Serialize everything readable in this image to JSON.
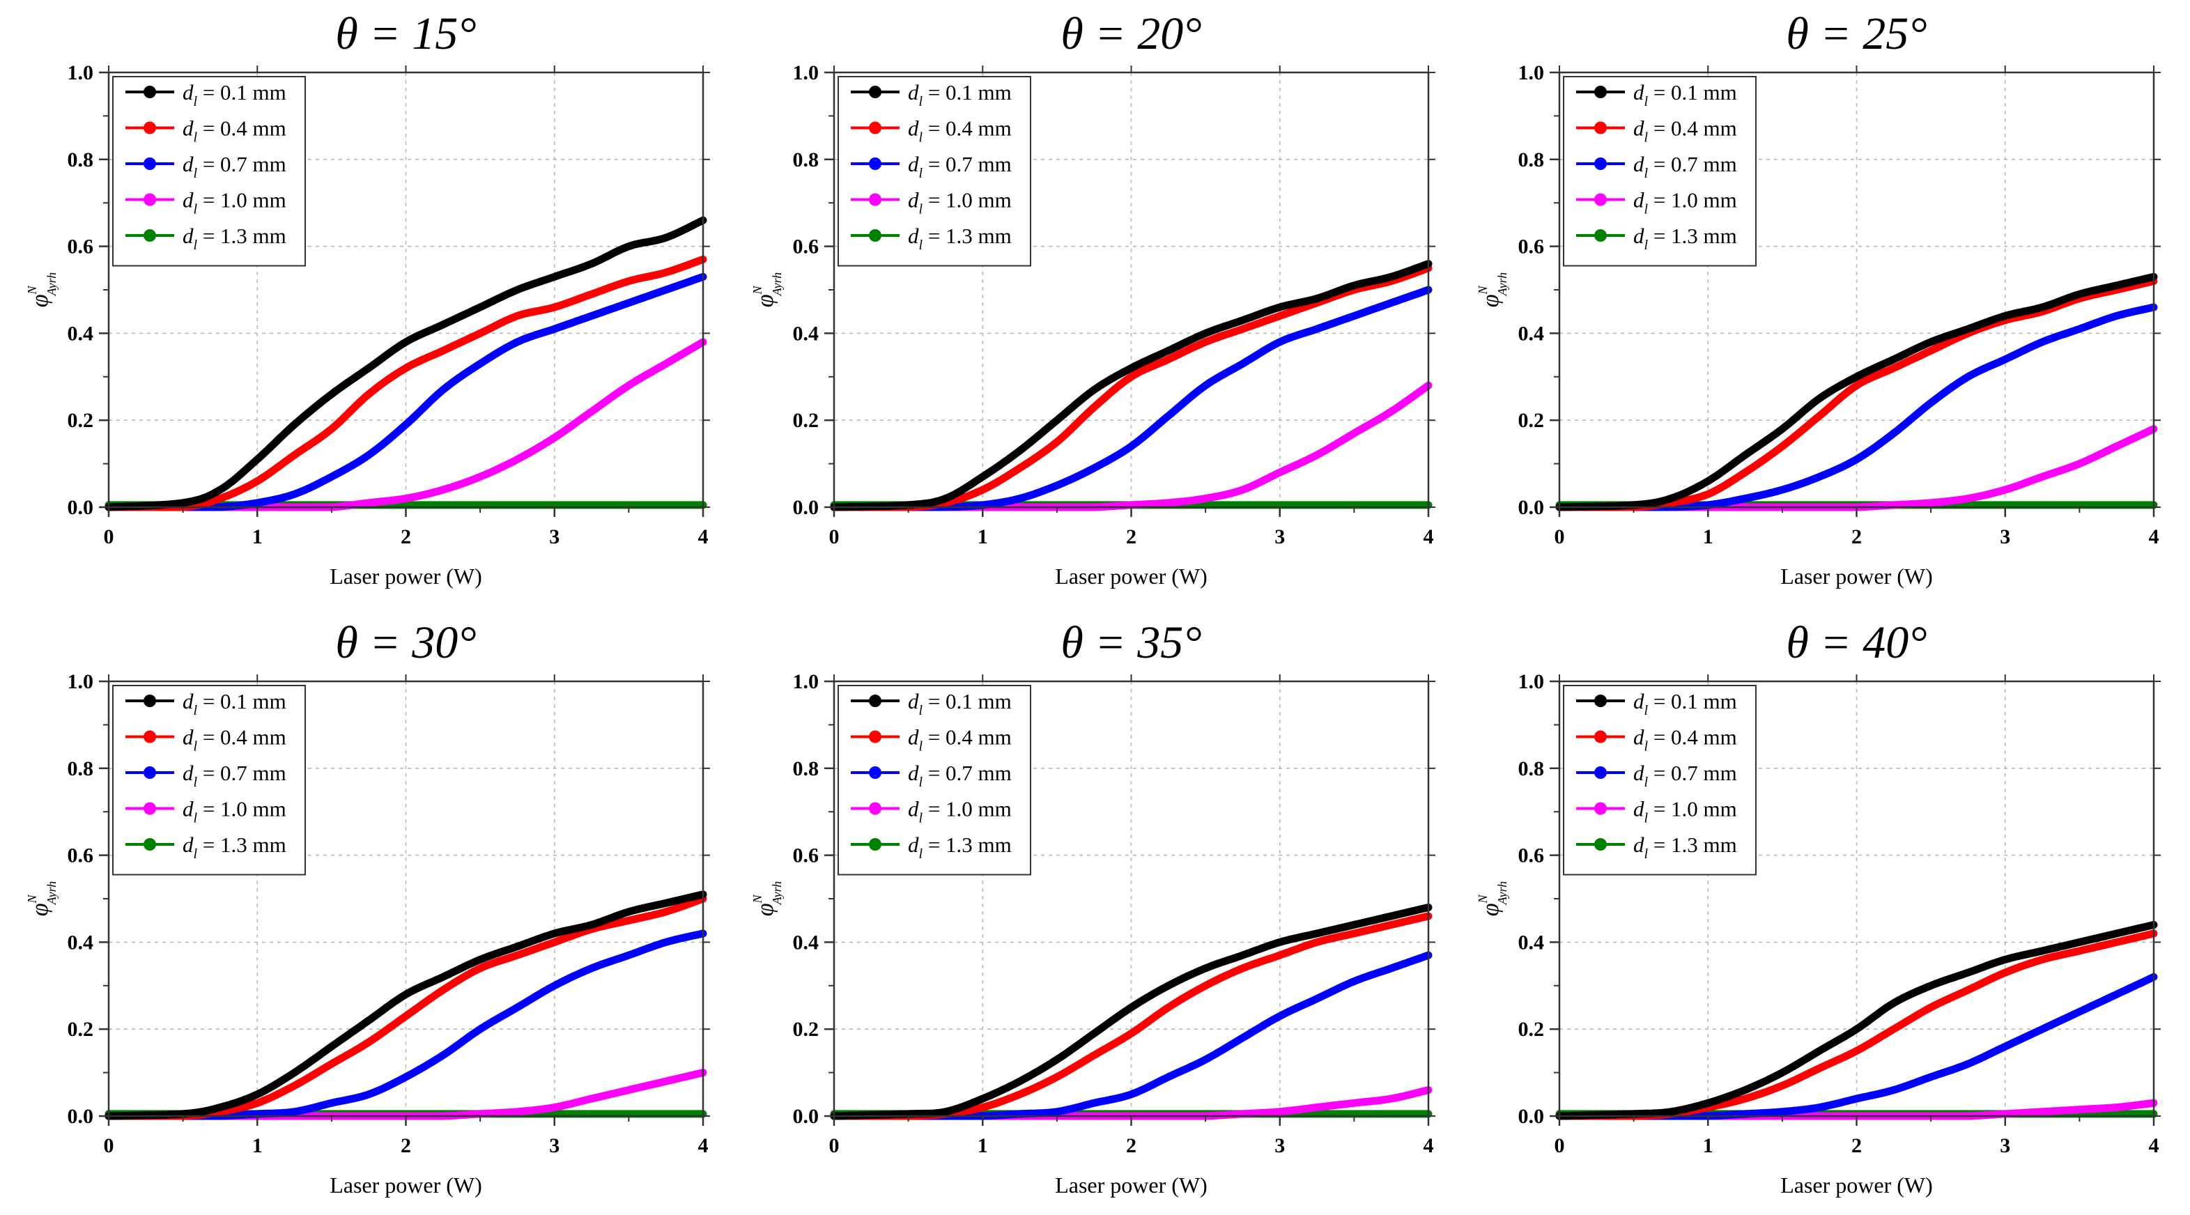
{
  "figure": {
    "series_styles": [
      {
        "label_value": "0.1 mm",
        "color": "#000000"
      },
      {
        "label_value": "0.4 mm",
        "color": "#ff0000"
      },
      {
        "label_value": "0.7 mm",
        "color": "#0000ff"
      },
      {
        "label_value": "1.0 mm",
        "color": "#ff00ff"
      },
      {
        "label_value": "1.3 mm",
        "color": "#008000"
      }
    ]
  },
  "chart_data": [
    {
      "type": "line",
      "title": "θ = 15°",
      "xlabel": "Laser power (W)",
      "ylabel": "φ",
      "ylabel_sup": "N",
      "ylabel_sub": "Ayrh",
      "xlim": [
        0,
        4
      ],
      "ylim": [
        0,
        1.0
      ],
      "xticks": [
        "0",
        "1",
        "2",
        "3",
        "4"
      ],
      "yticks": [
        "0.0",
        "0.2",
        "0.4",
        "0.6",
        "0.8",
        "1.0"
      ],
      "legend_position": "top-left",
      "legend_var": "d",
      "legend_sub": "l",
      "x": [
        0,
        0.5,
        0.75,
        1.0,
        1.25,
        1.5,
        1.75,
        2.0,
        2.25,
        2.5,
        2.75,
        3.0,
        3.25,
        3.5,
        3.75,
        4.0
      ],
      "series": [
        {
          "name": "0.1 mm",
          "values": [
            0.0,
            0.01,
            0.04,
            0.11,
            0.19,
            0.26,
            0.32,
            0.38,
            0.42,
            0.46,
            0.5,
            0.53,
            0.56,
            0.6,
            0.62,
            0.66
          ]
        },
        {
          "name": "0.4 mm",
          "values": [
            0.0,
            0.0,
            0.02,
            0.06,
            0.12,
            0.18,
            0.26,
            0.32,
            0.36,
            0.4,
            0.44,
            0.46,
            0.49,
            0.52,
            0.54,
            0.57
          ]
        },
        {
          "name": "0.7 mm",
          "values": [
            0.0,
            0.0,
            0.0,
            0.01,
            0.03,
            0.07,
            0.12,
            0.19,
            0.27,
            0.33,
            0.38,
            0.41,
            0.44,
            0.47,
            0.5,
            0.53
          ]
        },
        {
          "name": "1.0 mm",
          "values": [
            0.0,
            0.0,
            0.0,
            0.0,
            0.0,
            0.0,
            0.01,
            0.02,
            0.04,
            0.07,
            0.11,
            0.16,
            0.22,
            0.28,
            0.33,
            0.38
          ]
        },
        {
          "name": "1.3 mm",
          "values": [
            0.005,
            0.005,
            0.005,
            0.005,
            0.005,
            0.005,
            0.005,
            0.005,
            0.005,
            0.005,
            0.005,
            0.005,
            0.005,
            0.005,
            0.005,
            0.005
          ]
        }
      ]
    },
    {
      "type": "line",
      "title": "θ = 20°",
      "xlabel": "Laser power (W)",
      "ylabel": "φ",
      "ylabel_sup": "N",
      "ylabel_sub": "Ayrh",
      "xlim": [
        0,
        4
      ],
      "ylim": [
        0,
        1.0
      ],
      "xticks": [
        "0",
        "1",
        "2",
        "3",
        "4"
      ],
      "yticks": [
        "0.0",
        "0.2",
        "0.4",
        "0.6",
        "0.8",
        "1.0"
      ],
      "legend_position": "top-left",
      "legend_var": "d",
      "legend_sub": "l",
      "x": [
        0,
        0.5,
        0.75,
        1.0,
        1.25,
        1.5,
        1.75,
        2.0,
        2.25,
        2.5,
        2.75,
        3.0,
        3.25,
        3.5,
        3.75,
        4.0
      ],
      "series": [
        {
          "name": "0.1 mm",
          "values": [
            0.0,
            0.005,
            0.02,
            0.07,
            0.13,
            0.2,
            0.27,
            0.32,
            0.36,
            0.4,
            0.43,
            0.46,
            0.48,
            0.51,
            0.53,
            0.56
          ]
        },
        {
          "name": "0.4 mm",
          "values": [
            0.0,
            0.0,
            0.01,
            0.04,
            0.09,
            0.15,
            0.23,
            0.3,
            0.34,
            0.38,
            0.41,
            0.44,
            0.47,
            0.5,
            0.52,
            0.55
          ]
        },
        {
          "name": "0.7 mm",
          "values": [
            0.0,
            0.0,
            0.0,
            0.005,
            0.02,
            0.05,
            0.09,
            0.14,
            0.21,
            0.28,
            0.33,
            0.38,
            0.41,
            0.44,
            0.47,
            0.5
          ]
        },
        {
          "name": "1.0 mm",
          "values": [
            0.0,
            0.0,
            0.0,
            0.0,
            0.0,
            0.0,
            0.0,
            0.005,
            0.01,
            0.02,
            0.04,
            0.08,
            0.12,
            0.17,
            0.22,
            0.28
          ]
        },
        {
          "name": "1.3 mm",
          "values": [
            0.005,
            0.005,
            0.005,
            0.005,
            0.005,
            0.005,
            0.005,
            0.005,
            0.005,
            0.005,
            0.005,
            0.005,
            0.005,
            0.005,
            0.005,
            0.005
          ]
        }
      ]
    },
    {
      "type": "line",
      "title": "θ = 25°",
      "xlabel": "Laser power (W)",
      "ylabel": "φ",
      "ylabel_sup": "N",
      "ylabel_sub": "Ayrh",
      "xlim": [
        0,
        4
      ],
      "ylim": [
        0,
        1.0
      ],
      "xticks": [
        "0",
        "1",
        "2",
        "3",
        "4"
      ],
      "yticks": [
        "0.0",
        "0.2",
        "0.4",
        "0.6",
        "0.8",
        "1.0"
      ],
      "legend_position": "top-left",
      "legend_var": "d",
      "legend_sub": "l",
      "x": [
        0,
        0.5,
        0.75,
        1.0,
        1.25,
        1.5,
        1.75,
        2.0,
        2.25,
        2.5,
        2.75,
        3.0,
        3.25,
        3.5,
        3.75,
        4.0
      ],
      "series": [
        {
          "name": "0.1 mm",
          "values": [
            0.0,
            0.005,
            0.02,
            0.06,
            0.12,
            0.18,
            0.25,
            0.3,
            0.34,
            0.38,
            0.41,
            0.44,
            0.46,
            0.49,
            0.51,
            0.53
          ]
        },
        {
          "name": "0.4 mm",
          "values": [
            0.0,
            0.0,
            0.01,
            0.03,
            0.08,
            0.14,
            0.21,
            0.28,
            0.32,
            0.36,
            0.4,
            0.43,
            0.45,
            0.48,
            0.5,
            0.52
          ]
        },
        {
          "name": "0.7 mm",
          "values": [
            0.0,
            0.0,
            0.0,
            0.005,
            0.02,
            0.04,
            0.07,
            0.11,
            0.17,
            0.24,
            0.3,
            0.34,
            0.38,
            0.41,
            0.44,
            0.46
          ]
        },
        {
          "name": "1.0 mm",
          "values": [
            0.0,
            0.0,
            0.0,
            0.0,
            0.0,
            0.0,
            0.0,
            0.0,
            0.005,
            0.01,
            0.02,
            0.04,
            0.07,
            0.1,
            0.14,
            0.18
          ]
        },
        {
          "name": "1.3 mm",
          "values": [
            0.005,
            0.005,
            0.005,
            0.005,
            0.005,
            0.005,
            0.005,
            0.005,
            0.005,
            0.005,
            0.005,
            0.005,
            0.005,
            0.005,
            0.005,
            0.005
          ]
        }
      ]
    },
    {
      "type": "line",
      "title": "θ = 30°",
      "xlabel": "Laser power (W)",
      "ylabel": "φ",
      "ylabel_sup": "N",
      "ylabel_sub": "Ayrh",
      "xlim": [
        0,
        4
      ],
      "ylim": [
        0,
        1.0
      ],
      "xticks": [
        "0",
        "1",
        "2",
        "3",
        "4"
      ],
      "yticks": [
        "0.0",
        "0.2",
        "0.4",
        "0.6",
        "0.8",
        "1.0"
      ],
      "legend_position": "top-left",
      "legend_var": "d",
      "legend_sub": "l",
      "x": [
        0,
        0.5,
        0.75,
        1.0,
        1.25,
        1.5,
        1.75,
        2.0,
        2.25,
        2.5,
        2.75,
        3.0,
        3.25,
        3.5,
        3.75,
        4.0
      ],
      "series": [
        {
          "name": "0.1 mm",
          "values": [
            0.0,
            0.005,
            0.02,
            0.05,
            0.1,
            0.16,
            0.22,
            0.28,
            0.32,
            0.36,
            0.39,
            0.42,
            0.44,
            0.47,
            0.49,
            0.51
          ]
        },
        {
          "name": "0.4 mm",
          "values": [
            0.0,
            0.0,
            0.01,
            0.03,
            0.07,
            0.12,
            0.17,
            0.23,
            0.29,
            0.34,
            0.37,
            0.4,
            0.43,
            0.45,
            0.47,
            0.5
          ]
        },
        {
          "name": "0.7 mm",
          "values": [
            0.0,
            0.0,
            0.0,
            0.005,
            0.01,
            0.03,
            0.05,
            0.09,
            0.14,
            0.2,
            0.25,
            0.3,
            0.34,
            0.37,
            0.4,
            0.42
          ]
        },
        {
          "name": "1.0 mm",
          "values": [
            0.0,
            0.0,
            0.0,
            0.0,
            0.0,
            0.0,
            0.0,
            0.0,
            0.0,
            0.005,
            0.01,
            0.02,
            0.04,
            0.06,
            0.08,
            0.1
          ]
        },
        {
          "name": "1.3 mm",
          "values": [
            0.005,
            0.005,
            0.005,
            0.005,
            0.005,
            0.005,
            0.005,
            0.005,
            0.005,
            0.005,
            0.005,
            0.005,
            0.005,
            0.005,
            0.005,
            0.005
          ]
        }
      ]
    },
    {
      "type": "line",
      "title": "θ = 35°",
      "xlabel": "Laser power (W)",
      "ylabel": "φ",
      "ylabel_sup": "N",
      "ylabel_sub": "Ayrh",
      "xlim": [
        0,
        4
      ],
      "ylim": [
        0,
        1.0
      ],
      "xticks": [
        "0",
        "1",
        "2",
        "3",
        "4"
      ],
      "yticks": [
        "0.0",
        "0.2",
        "0.4",
        "0.6",
        "0.8",
        "1.0"
      ],
      "legend_position": "top-left",
      "legend_var": "d",
      "legend_sub": "l",
      "x": [
        0,
        0.5,
        0.75,
        1.0,
        1.25,
        1.5,
        1.75,
        2.0,
        2.25,
        2.5,
        2.75,
        3.0,
        3.25,
        3.5,
        3.75,
        4.0
      ],
      "series": [
        {
          "name": "0.1 mm",
          "values": [
            0.0,
            0.005,
            0.01,
            0.04,
            0.08,
            0.13,
            0.19,
            0.25,
            0.3,
            0.34,
            0.37,
            0.4,
            0.42,
            0.44,
            0.46,
            0.48
          ]
        },
        {
          "name": "0.4 mm",
          "values": [
            0.0,
            0.0,
            0.005,
            0.02,
            0.05,
            0.09,
            0.14,
            0.19,
            0.25,
            0.3,
            0.34,
            0.37,
            0.4,
            0.42,
            0.44,
            0.46
          ]
        },
        {
          "name": "0.7 mm",
          "values": [
            0.0,
            0.0,
            0.0,
            0.0,
            0.005,
            0.01,
            0.03,
            0.05,
            0.09,
            0.13,
            0.18,
            0.23,
            0.27,
            0.31,
            0.34,
            0.37
          ]
        },
        {
          "name": "1.0 mm",
          "values": [
            0.0,
            0.0,
            0.0,
            0.0,
            0.0,
            0.0,
            0.0,
            0.0,
            0.0,
            0.0,
            0.005,
            0.01,
            0.02,
            0.03,
            0.04,
            0.06
          ]
        },
        {
          "name": "1.3 mm",
          "values": [
            0.005,
            0.005,
            0.005,
            0.005,
            0.005,
            0.005,
            0.005,
            0.005,
            0.005,
            0.005,
            0.005,
            0.005,
            0.005,
            0.005,
            0.005,
            0.005
          ]
        }
      ]
    },
    {
      "type": "line",
      "title": "θ = 40°",
      "xlabel": "Laser power (W)",
      "ylabel": "φ",
      "ylabel_sup": "N",
      "ylabel_sub": "Ayrh",
      "xlim": [
        0,
        4
      ],
      "ylim": [
        0,
        1.0
      ],
      "xticks": [
        "0",
        "1",
        "2",
        "3",
        "4"
      ],
      "yticks": [
        "0.0",
        "0.2",
        "0.4",
        "0.6",
        "0.8",
        "1.0"
      ],
      "legend_position": "top-left",
      "legend_var": "d",
      "legend_sub": "l",
      "x": [
        0,
        0.5,
        0.75,
        1.0,
        1.25,
        1.5,
        1.75,
        2.0,
        2.25,
        2.5,
        2.75,
        3.0,
        3.25,
        3.5,
        3.75,
        4.0
      ],
      "series": [
        {
          "name": "0.1 mm",
          "values": [
            0.0,
            0.005,
            0.01,
            0.03,
            0.06,
            0.1,
            0.15,
            0.2,
            0.26,
            0.3,
            0.33,
            0.36,
            0.38,
            0.4,
            0.42,
            0.44
          ]
        },
        {
          "name": "0.4 mm",
          "values": [
            0.0,
            0.0,
            0.005,
            0.02,
            0.04,
            0.07,
            0.11,
            0.15,
            0.2,
            0.25,
            0.29,
            0.33,
            0.36,
            0.38,
            0.4,
            0.42
          ]
        },
        {
          "name": "0.7 mm",
          "values": [
            0.0,
            0.0,
            0.0,
            0.0,
            0.005,
            0.01,
            0.02,
            0.04,
            0.06,
            0.09,
            0.12,
            0.16,
            0.2,
            0.24,
            0.28,
            0.32
          ]
        },
        {
          "name": "1.0 mm",
          "values": [
            0.0,
            0.0,
            0.0,
            0.0,
            0.0,
            0.0,
            0.0,
            0.0,
            0.0,
            0.0,
            0.0,
            0.005,
            0.01,
            0.015,
            0.02,
            0.03
          ]
        },
        {
          "name": "1.3 mm",
          "values": [
            0.005,
            0.005,
            0.005,
            0.005,
            0.005,
            0.005,
            0.005,
            0.005,
            0.005,
            0.005,
            0.005,
            0.005,
            0.005,
            0.005,
            0.005,
            0.005
          ]
        }
      ]
    }
  ]
}
